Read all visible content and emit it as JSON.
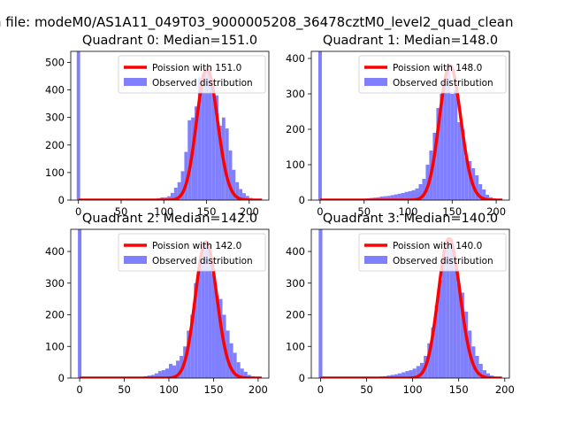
{
  "figure": {
    "suptitle": "n file: modeM0/AS1A11_049T03_9000005208_36478cztM0_level2_quad_clean"
  },
  "chart_data": [
    {
      "type": "bar",
      "title": "Quadrant 0: Median=151.0",
      "xlim": [
        -9,
        223
      ],
      "ylim": [
        0,
        540
      ],
      "xticks": [
        0,
        50,
        100,
        150,
        200
      ],
      "yticks": [
        0,
        100,
        200,
        300,
        400,
        500
      ],
      "legend_position": "upper-right",
      "series": [
        {
          "name": "Poission with 151.0",
          "kind": "line",
          "color": "#ff0000",
          "mean": 151.0
        },
        {
          "name": "Observed distribution",
          "kind": "histogram",
          "color": "#8080ff",
          "bins": [
            {
              "x0": -2,
              "x1": 2,
              "count": 540
            },
            {
              "x0": 88,
              "x1": 92,
              "count": 5
            },
            {
              "x0": 92,
              "x1": 96,
              "count": 7
            },
            {
              "x0": 96,
              "x1": 100,
              "count": 10
            },
            {
              "x0": 100,
              "x1": 104,
              "count": 10
            },
            {
              "x0": 104,
              "x1": 108,
              "count": 14
            },
            {
              "x0": 108,
              "x1": 112,
              "count": 26
            },
            {
              "x0": 112,
              "x1": 116,
              "count": 45
            },
            {
              "x0": 116,
              "x1": 120,
              "count": 65
            },
            {
              "x0": 120,
              "x1": 124,
              "count": 105
            },
            {
              "x0": 124,
              "x1": 128,
              "count": 175
            },
            {
              "x0": 128,
              "x1": 132,
              "count": 290
            },
            {
              "x0": 132,
              "x1": 136,
              "count": 300
            },
            {
              "x0": 136,
              "x1": 140,
              "count": 340
            },
            {
              "x0": 140,
              "x1": 144,
              "count": 445
            },
            {
              "x0": 144,
              "x1": 148,
              "count": 460
            },
            {
              "x0": 148,
              "x1": 152,
              "count": 475
            },
            {
              "x0": 152,
              "x1": 156,
              "count": 470
            },
            {
              "x0": 156,
              "x1": 160,
              "count": 420
            },
            {
              "x0": 160,
              "x1": 164,
              "count": 380
            },
            {
              "x0": 164,
              "x1": 168,
              "count": 270
            },
            {
              "x0": 168,
              "x1": 172,
              "count": 300
            },
            {
              "x0": 172,
              "x1": 176,
              "count": 260
            },
            {
              "x0": 176,
              "x1": 180,
              "count": 180
            },
            {
              "x0": 180,
              "x1": 184,
              "count": 110
            },
            {
              "x0": 184,
              "x1": 188,
              "count": 65
            },
            {
              "x0": 188,
              "x1": 192,
              "count": 40
            },
            {
              "x0": 192,
              "x1": 196,
              "count": 25
            },
            {
              "x0": 196,
              "x1": 200,
              "count": 15
            },
            {
              "x0": 200,
              "x1": 204,
              "count": 8
            },
            {
              "x0": 204,
              "x1": 208,
              "count": 4
            },
            {
              "x0": 208,
              "x1": 212,
              "count": 3
            }
          ]
        }
      ]
    },
    {
      "type": "bar",
      "title": "Quadrant 1: Median=148.0",
      "xlim": [
        -10,
        215
      ],
      "ylim": [
        0,
        420
      ],
      "xticks": [
        0,
        50,
        100,
        150,
        200
      ],
      "yticks": [
        0,
        100,
        200,
        300,
        400
      ],
      "legend_position": "upper-right",
      "series": [
        {
          "name": "Poission with 148.0",
          "kind": "line",
          "color": "#ff0000",
          "mean": 148.0
        },
        {
          "name": "Observed distribution",
          "kind": "histogram",
          "color": "#8080ff",
          "bins": [
            {
              "x0": -2,
              "x1": 2,
              "count": 420
            },
            {
              "x0": 44,
              "x1": 48,
              "count": 3
            },
            {
              "x0": 48,
              "x1": 52,
              "count": 4
            },
            {
              "x0": 52,
              "x1": 56,
              "count": 5
            },
            {
              "x0": 56,
              "x1": 60,
              "count": 6
            },
            {
              "x0": 60,
              "x1": 64,
              "count": 7
            },
            {
              "x0": 64,
              "x1": 68,
              "count": 8
            },
            {
              "x0": 68,
              "x1": 72,
              "count": 10
            },
            {
              "x0": 72,
              "x1": 76,
              "count": 11
            },
            {
              "x0": 76,
              "x1": 80,
              "count": 12
            },
            {
              "x0": 80,
              "x1": 84,
              "count": 14
            },
            {
              "x0": 84,
              "x1": 88,
              "count": 16
            },
            {
              "x0": 88,
              "x1": 92,
              "count": 18
            },
            {
              "x0": 92,
              "x1": 96,
              "count": 20
            },
            {
              "x0": 96,
              "x1": 100,
              "count": 23
            },
            {
              "x0": 100,
              "x1": 104,
              "count": 25
            },
            {
              "x0": 104,
              "x1": 108,
              "count": 28
            },
            {
              "x0": 108,
              "x1": 112,
              "count": 33
            },
            {
              "x0": 112,
              "x1": 116,
              "count": 45
            },
            {
              "x0": 116,
              "x1": 120,
              "count": 60
            },
            {
              "x0": 120,
              "x1": 124,
              "count": 100
            },
            {
              "x0": 124,
              "x1": 128,
              "count": 140
            },
            {
              "x0": 128,
              "x1": 132,
              "count": 190
            },
            {
              "x0": 132,
              "x1": 136,
              "count": 260
            },
            {
              "x0": 136,
              "x1": 140,
              "count": 300
            },
            {
              "x0": 140,
              "x1": 144,
              "count": 330
            },
            {
              "x0": 144,
              "x1": 148,
              "count": 380
            },
            {
              "x0": 148,
              "x1": 152,
              "count": 300
            },
            {
              "x0": 152,
              "x1": 156,
              "count": 310
            },
            {
              "x0": 156,
              "x1": 160,
              "count": 220
            },
            {
              "x0": 160,
              "x1": 164,
              "count": 200
            },
            {
              "x0": 164,
              "x1": 168,
              "count": 120
            },
            {
              "x0": 168,
              "x1": 172,
              "count": 110
            },
            {
              "x0": 172,
              "x1": 176,
              "count": 90
            },
            {
              "x0": 176,
              "x1": 180,
              "count": 70
            },
            {
              "x0": 180,
              "x1": 184,
              "count": 45
            },
            {
              "x0": 184,
              "x1": 188,
              "count": 30
            },
            {
              "x0": 188,
              "x1": 192,
              "count": 15
            },
            {
              "x0": 192,
              "x1": 196,
              "count": 8
            },
            {
              "x0": 196,
              "x1": 200,
              "count": 5
            },
            {
              "x0": 200,
              "x1": 204,
              "count": 3
            }
          ]
        }
      ]
    },
    {
      "type": "bar",
      "title": "Quadrant 2: Median=142.0",
      "xlim": [
        -10,
        212
      ],
      "ylim": [
        0,
        470
      ],
      "xticks": [
        0,
        50,
        100,
        150,
        200
      ],
      "yticks": [
        0,
        100,
        200,
        300,
        400
      ],
      "legend_position": "upper-right",
      "series": [
        {
          "name": "Poission with 142.0",
          "kind": "line",
          "color": "#ff0000",
          "mean": 142.0
        },
        {
          "name": "Observed distribution",
          "kind": "histogram",
          "color": "#8080ff",
          "bins": [
            {
              "x0": -2,
              "x1": 2,
              "count": 470
            },
            {
              "x0": 40,
              "x1": 44,
              "count": 2
            },
            {
              "x0": 48,
              "x1": 52,
              "count": 3
            },
            {
              "x0": 56,
              "x1": 60,
              "count": 3
            },
            {
              "x0": 64,
              "x1": 68,
              "count": 4
            },
            {
              "x0": 72,
              "x1": 76,
              "count": 6
            },
            {
              "x0": 76,
              "x1": 80,
              "count": 8
            },
            {
              "x0": 80,
              "x1": 84,
              "count": 10
            },
            {
              "x0": 84,
              "x1": 88,
              "count": 15
            },
            {
              "x0": 88,
              "x1": 92,
              "count": 22
            },
            {
              "x0": 92,
              "x1": 96,
              "count": 25
            },
            {
              "x0": 96,
              "x1": 100,
              "count": 30
            },
            {
              "x0": 100,
              "x1": 104,
              "count": 45
            },
            {
              "x0": 104,
              "x1": 108,
              "count": 40
            },
            {
              "x0": 108,
              "x1": 112,
              "count": 55
            },
            {
              "x0": 112,
              "x1": 116,
              "count": 70
            },
            {
              "x0": 116,
              "x1": 120,
              "count": 100
            },
            {
              "x0": 120,
              "x1": 124,
              "count": 150
            },
            {
              "x0": 124,
              "x1": 128,
              "count": 200
            },
            {
              "x0": 128,
              "x1": 132,
              "count": 300
            },
            {
              "x0": 132,
              "x1": 136,
              "count": 350
            },
            {
              "x0": 136,
              "x1": 140,
              "count": 430
            },
            {
              "x0": 140,
              "x1": 144,
              "count": 425
            },
            {
              "x0": 144,
              "x1": 148,
              "count": 420
            },
            {
              "x0": 148,
              "x1": 152,
              "count": 330
            },
            {
              "x0": 152,
              "x1": 156,
              "count": 260
            },
            {
              "x0": 156,
              "x1": 160,
              "count": 250
            },
            {
              "x0": 160,
              "x1": 164,
              "count": 200
            },
            {
              "x0": 164,
              "x1": 168,
              "count": 150
            },
            {
              "x0": 168,
              "x1": 172,
              "count": 110
            },
            {
              "x0": 172,
              "x1": 176,
              "count": 80
            },
            {
              "x0": 176,
              "x1": 180,
              "count": 50
            },
            {
              "x0": 180,
              "x1": 184,
              "count": 30
            },
            {
              "x0": 184,
              "x1": 188,
              "count": 20
            },
            {
              "x0": 188,
              "x1": 192,
              "count": 10
            },
            {
              "x0": 192,
              "x1": 196,
              "count": 6
            },
            {
              "x0": 196,
              "x1": 200,
              "count": 3
            }
          ]
        }
      ]
    },
    {
      "type": "bar",
      "title": "Quadrant 3: Median=140.0",
      "xlim": [
        -10,
        205
      ],
      "ylim": [
        0,
        470
      ],
      "xticks": [
        0,
        50,
        100,
        150,
        200
      ],
      "yticks": [
        0,
        100,
        200,
        300,
        400
      ],
      "legend_position": "upper-right",
      "series": [
        {
          "name": "Poission with 140.0",
          "kind": "line",
          "color": "#ff0000",
          "mean": 140.0
        },
        {
          "name": "Observed distribution",
          "kind": "histogram",
          "color": "#8080ff",
          "bins": [
            {
              "x0": -2,
              "x1": 2,
              "count": 470
            },
            {
              "x0": 40,
              "x1": 44,
              "count": 3
            },
            {
              "x0": 48,
              "x1": 52,
              "count": 3
            },
            {
              "x0": 56,
              "x1": 60,
              "count": 4
            },
            {
              "x0": 64,
              "x1": 68,
              "count": 5
            },
            {
              "x0": 68,
              "x1": 72,
              "count": 6
            },
            {
              "x0": 72,
              "x1": 76,
              "count": 8
            },
            {
              "x0": 76,
              "x1": 80,
              "count": 10
            },
            {
              "x0": 80,
              "x1": 84,
              "count": 12
            },
            {
              "x0": 84,
              "x1": 88,
              "count": 15
            },
            {
              "x0": 88,
              "x1": 92,
              "count": 18
            },
            {
              "x0": 92,
              "x1": 96,
              "count": 22
            },
            {
              "x0": 96,
              "x1": 100,
              "count": 25
            },
            {
              "x0": 100,
              "x1": 104,
              "count": 30
            },
            {
              "x0": 104,
              "x1": 108,
              "count": 38
            },
            {
              "x0": 108,
              "x1": 112,
              "count": 48
            },
            {
              "x0": 112,
              "x1": 116,
              "count": 70
            },
            {
              "x0": 116,
              "x1": 120,
              "count": 110
            },
            {
              "x0": 120,
              "x1": 124,
              "count": 160
            },
            {
              "x0": 124,
              "x1": 128,
              "count": 230
            },
            {
              "x0": 128,
              "x1": 132,
              "count": 310
            },
            {
              "x0": 132,
              "x1": 136,
              "count": 380
            },
            {
              "x0": 136,
              "x1": 140,
              "count": 420
            },
            {
              "x0": 140,
              "x1": 144,
              "count": 440
            },
            {
              "x0": 144,
              "x1": 148,
              "count": 360
            },
            {
              "x0": 148,
              "x1": 152,
              "count": 300
            },
            {
              "x0": 152,
              "x1": 156,
              "count": 270
            },
            {
              "x0": 156,
              "x1": 160,
              "count": 210
            },
            {
              "x0": 160,
              "x1": 164,
              "count": 150
            },
            {
              "x0": 164,
              "x1": 168,
              "count": 100
            },
            {
              "x0": 168,
              "x1": 172,
              "count": 70
            },
            {
              "x0": 172,
              "x1": 176,
              "count": 45
            },
            {
              "x0": 176,
              "x1": 180,
              "count": 25
            },
            {
              "x0": 180,
              "x1": 184,
              "count": 15
            },
            {
              "x0": 184,
              "x1": 188,
              "count": 8
            },
            {
              "x0": 188,
              "x1": 192,
              "count": 4
            }
          ]
        }
      ]
    }
  ]
}
